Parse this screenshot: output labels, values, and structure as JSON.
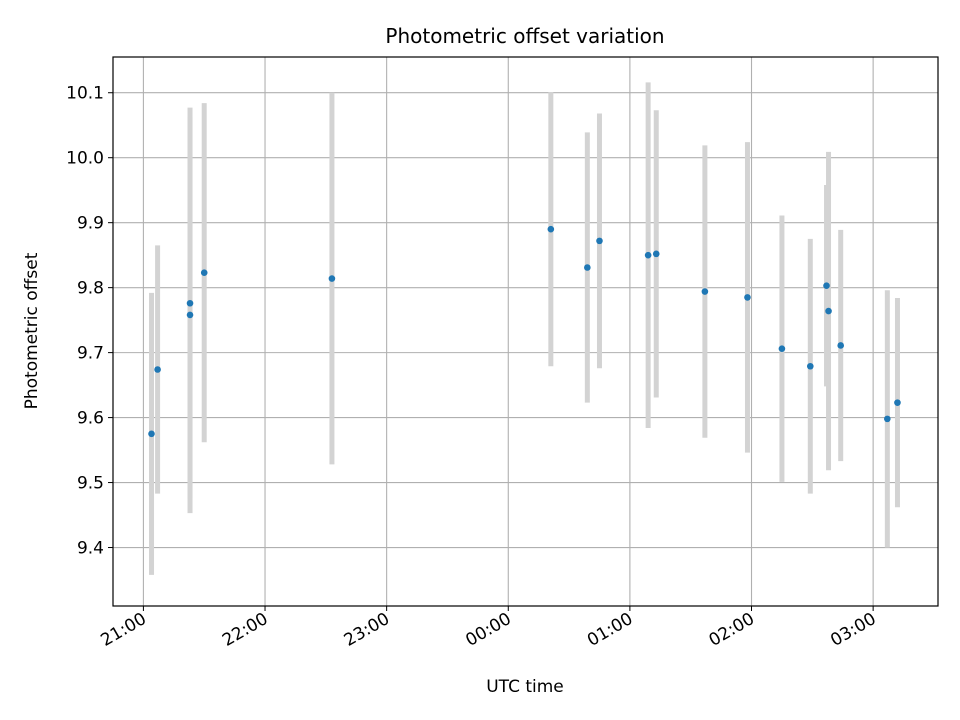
{
  "chart_data": {
    "type": "scatter",
    "title": "Photometric offset variation",
    "xlabel": "UTC time",
    "ylabel": "Photometric offset",
    "x_unit": "UTC time of night (hh:mm)",
    "xlim": [
      "20:45",
      "03:32"
    ],
    "ylim": [
      9.31,
      10.155
    ],
    "x_ticks": [
      "21:00",
      "22:00",
      "23:00",
      "00:00",
      "01:00",
      "02:00",
      "03:00"
    ],
    "y_ticks": [
      "9.4",
      "9.5",
      "9.6",
      "9.7",
      "9.8",
      "9.9",
      "10.0",
      "10.1"
    ],
    "grid": true,
    "point_color": "#1f77b4",
    "errorbar_color": "#d3d3d3",
    "series": [
      {
        "points": [
          {
            "time": "21:04",
            "y": 9.575,
            "err": 0.217
          },
          {
            "time": "21:07",
            "y": 9.674,
            "err": 0.191
          },
          {
            "time": "21:23",
            "y": 9.776,
            "err": 0.301
          },
          {
            "time": "21:23",
            "y": 9.758,
            "err": 0.305
          },
          {
            "time": "21:30",
            "y": 9.823,
            "err": 0.261
          },
          {
            "time": "22:33",
            "y": 9.814,
            "err": 0.286
          },
          {
            "time": "00:21",
            "y": 9.89,
            "err": 0.211
          },
          {
            "time": "00:39",
            "y": 9.831,
            "err": 0.208
          },
          {
            "time": "00:45",
            "y": 9.872,
            "err": 0.196
          },
          {
            "time": "01:09",
            "y": 9.85,
            "err": 0.266
          },
          {
            "time": "01:13",
            "y": 9.852,
            "err": 0.221
          },
          {
            "time": "01:37",
            "y": 9.794,
            "err": 0.225
          },
          {
            "time": "01:58",
            "y": 9.785,
            "err": 0.239
          },
          {
            "time": "02:15",
            "y": 9.706,
            "err": 0.205
          },
          {
            "time": "02:29",
            "y": 9.679,
            "err": 0.196
          },
          {
            "time": "02:37",
            "y": 9.803,
            "err": 0.155
          },
          {
            "time": "02:38",
            "y": 9.764,
            "err": 0.245
          },
          {
            "time": "02:44",
            "y": 9.711,
            "err": 0.178
          },
          {
            "time": "03:07",
            "y": 9.598,
            "err": 0.198
          },
          {
            "time": "03:12",
            "y": 9.623,
            "err": 0.161
          }
        ]
      }
    ]
  }
}
